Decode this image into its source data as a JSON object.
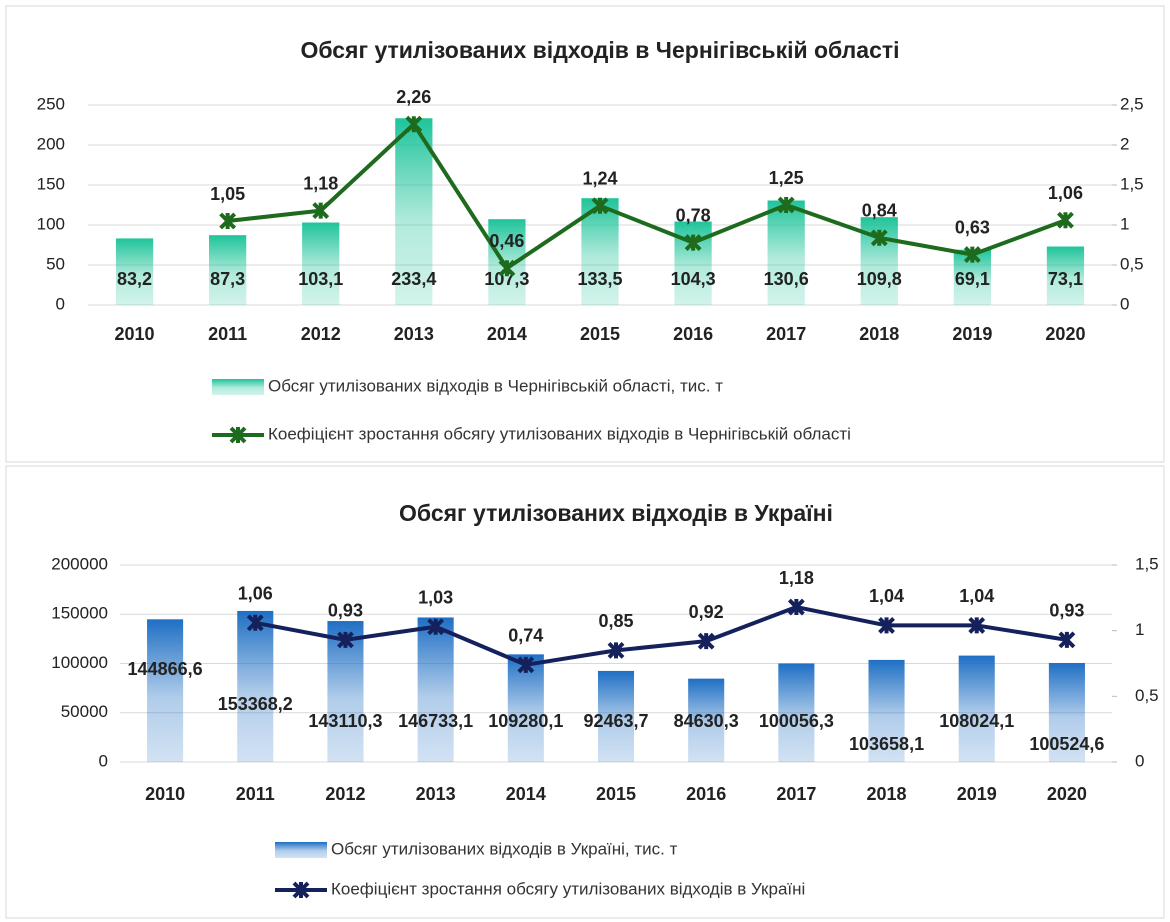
{
  "chart_data": [
    {
      "type": "bar-line",
      "title": "Обсяг утилізованих відходів в Чернігівській області",
      "categories": [
        "2010",
        "2011",
        "2012",
        "2013",
        "2014",
        "2015",
        "2016",
        "2017",
        "2018",
        "2019",
        "2020"
      ],
      "series": [
        {
          "name": "Обсяг утилізованих відходів в Чернігівській області, тис. т",
          "type": "bar",
          "color": "#1fc49a",
          "values": [
            83.2,
            87.3,
            103.1,
            233.4,
            107.3,
            133.5,
            104.3,
            130.6,
            109.8,
            69.1,
            73.1
          ],
          "value_labels": [
            "83,2",
            "87,3",
            "103,1",
            "233,4",
            "107,3",
            "133,5",
            "104,3",
            "130,6",
            "109,8",
            "69,1",
            "73,1"
          ]
        },
        {
          "name": "Коефіцієнт зростання обсягу утилізованих відходів в Чернігівській області",
          "type": "line",
          "axis": "y2",
          "color": "#1e6b1e",
          "values": [
            null,
            1.05,
            1.18,
            2.26,
            0.46,
            1.24,
            0.78,
            1.25,
            0.84,
            0.63,
            1.06
          ],
          "value_labels": [
            null,
            "1,05",
            "1,18",
            "2,26",
            "0,46",
            "1,24",
            "0,78",
            "1,25",
            "0,84",
            "0,63",
            "1,06"
          ]
        }
      ],
      "ylim": [
        0,
        250
      ],
      "yticks": [
        0,
        50,
        100,
        150,
        200,
        250
      ],
      "y2lim": [
        0,
        2.5
      ],
      "y2ticks": [
        0,
        {
          "value": 0.5,
          "label": "0,5"
        },
        1,
        {
          "value": 1.5,
          "label": "1,5"
        },
        2,
        {
          "value": 2.5,
          "label": "2,5"
        }
      ],
      "grid": true
    },
    {
      "type": "bar-line",
      "title": "Обсяг утилізованих відходів в Україні",
      "categories": [
        "2010",
        "2011",
        "2012",
        "2013",
        "2014",
        "2015",
        "2016",
        "2017",
        "2018",
        "2019",
        "2020"
      ],
      "series": [
        {
          "name": "Обсяг утилізованих відходів в Україні, тис. т",
          "type": "bar",
          "color": "#1f6fc4",
          "values": [
            144866.6,
            153368.2,
            143110.3,
            146733.1,
            109280.1,
            92463.7,
            84630.3,
            100056.3,
            103658.1,
            108024.1,
            100524.6
          ],
          "value_labels": [
            "144866,6",
            "153368,2",
            "143110,3",
            "146733,1",
            "109280,1",
            "92463,7",
            "84630,3",
            "100056,3",
            "103658,1",
            "108024,1",
            "100524,6"
          ]
        },
        {
          "name": "Коефіцієнт зростання обсягу утилізованих відходів в Україні",
          "type": "line",
          "axis": "y2",
          "color": "#14215c",
          "values": [
            null,
            1.06,
            0.93,
            1.03,
            0.74,
            0.85,
            0.92,
            1.18,
            1.04,
            1.04,
            0.93
          ],
          "value_labels": [
            null,
            "1,06",
            "0,93",
            "1,03",
            "0,74",
            "0,85",
            "0,92",
            "1,18",
            "1,04",
            "1,04",
            "0,93"
          ]
        }
      ],
      "ylim": [
        0,
        200000
      ],
      "yticks": [
        0,
        50000,
        100000,
        150000,
        200000
      ],
      "y2lim": [
        0,
        1.5
      ],
      "y2ticks": [
        0,
        {
          "value": 0.5,
          "label": "0,5"
        },
        1,
        {
          "value": 1.5,
          "label": "1,5"
        }
      ],
      "grid": true
    }
  ]
}
